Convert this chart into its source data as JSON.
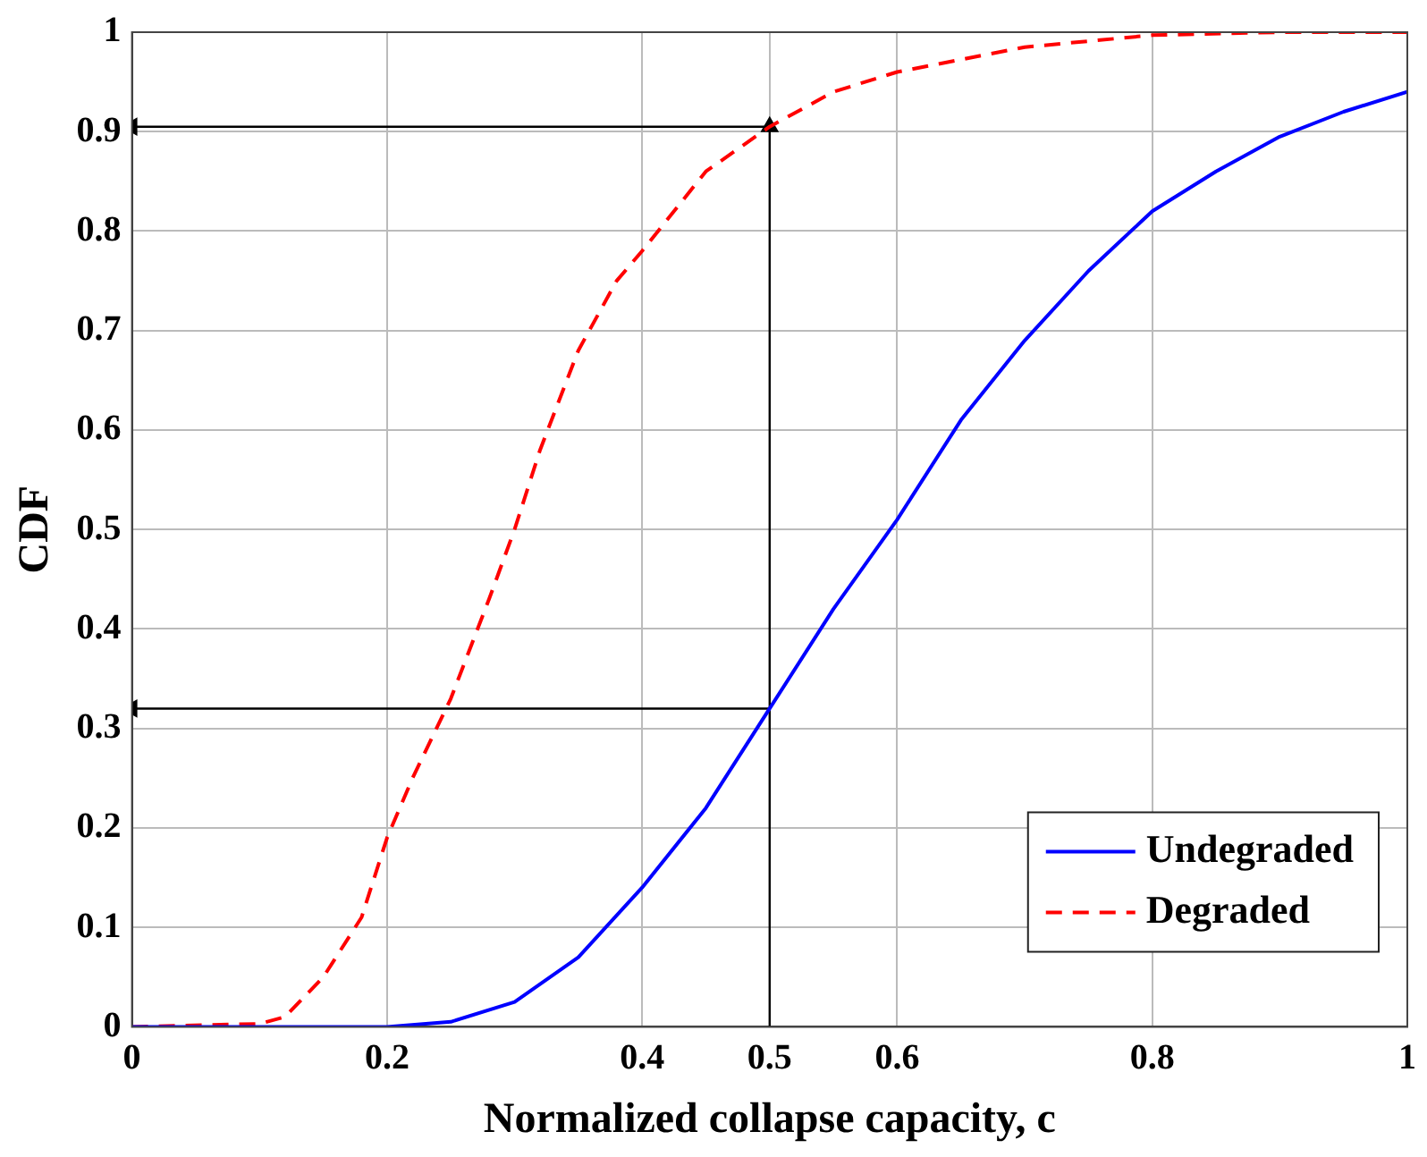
{
  "chart_data": {
    "type": "line",
    "xlabel": "Normalized collapse capacity, c",
    "ylabel": "CDF",
    "xlim": [
      0,
      1
    ],
    "xticks": [
      0,
      0.2,
      0.4,
      0.5,
      0.6,
      0.8,
      1
    ],
    "ylim": [
      0,
      1
    ],
    "yticks": [
      0,
      0.1,
      0.2,
      0.3,
      0.4,
      0.5,
      0.6,
      0.7,
      0.8,
      0.9,
      1
    ],
    "grid": true,
    "legend": "bottom right",
    "marker": "none",
    "series": [
      {
        "name": "Undegraded",
        "color": "#0000ff",
        "line_style": "solid",
        "x": [
          0,
          0.2,
          0.25,
          0.3,
          0.35,
          0.4,
          0.45,
          0.5,
          0.55,
          0.6,
          0.65,
          0.7,
          0.75,
          0.8,
          0.85,
          0.9,
          0.95,
          1
        ],
        "values": [
          0,
          0,
          0.005,
          0.025,
          0.07,
          0.14,
          0.22,
          0.32,
          0.42,
          0.51,
          0.61,
          0.69,
          0.76,
          0.82,
          0.86,
          0.895,
          0.92,
          0.94
        ]
      },
      {
        "name": "Degraded",
        "color": "#ff0000",
        "line_style": "dashed",
        "x": [
          0,
          0.1,
          0.12,
          0.15,
          0.18,
          0.2,
          0.22,
          0.25,
          0.28,
          0.3,
          0.32,
          0.35,
          0.38,
          0.4,
          0.45,
          0.5,
          0.55,
          0.6,
          0.7,
          0.8,
          0.9,
          1
        ],
        "values": [
          0,
          0.003,
          0.01,
          0.05,
          0.11,
          0.19,
          0.25,
          0.33,
          0.43,
          0.5,
          0.58,
          0.68,
          0.75,
          0.78,
          0.86,
          0.905,
          0.94,
          0.96,
          0.985,
          0.997,
          1,
          1
        ]
      },
      {
        "color": "#000000",
        "line_style": "solid",
        "marker": "triangle",
        "x": [
          0.5,
          0.5
        ],
        "values": [
          0,
          0.905
        ]
      },
      {
        "color": "#000000",
        "line_style": "solid",
        "marker": "triangle",
        "x": [
          0.5,
          0
        ],
        "values": [
          0.905,
          0.905
        ]
      },
      {
        "color": "#000000",
        "line_style": "solid",
        "marker": "triangle",
        "x": [
          0.5,
          0
        ],
        "values": [
          0.32,
          0.32
        ]
      }
    ]
  }
}
